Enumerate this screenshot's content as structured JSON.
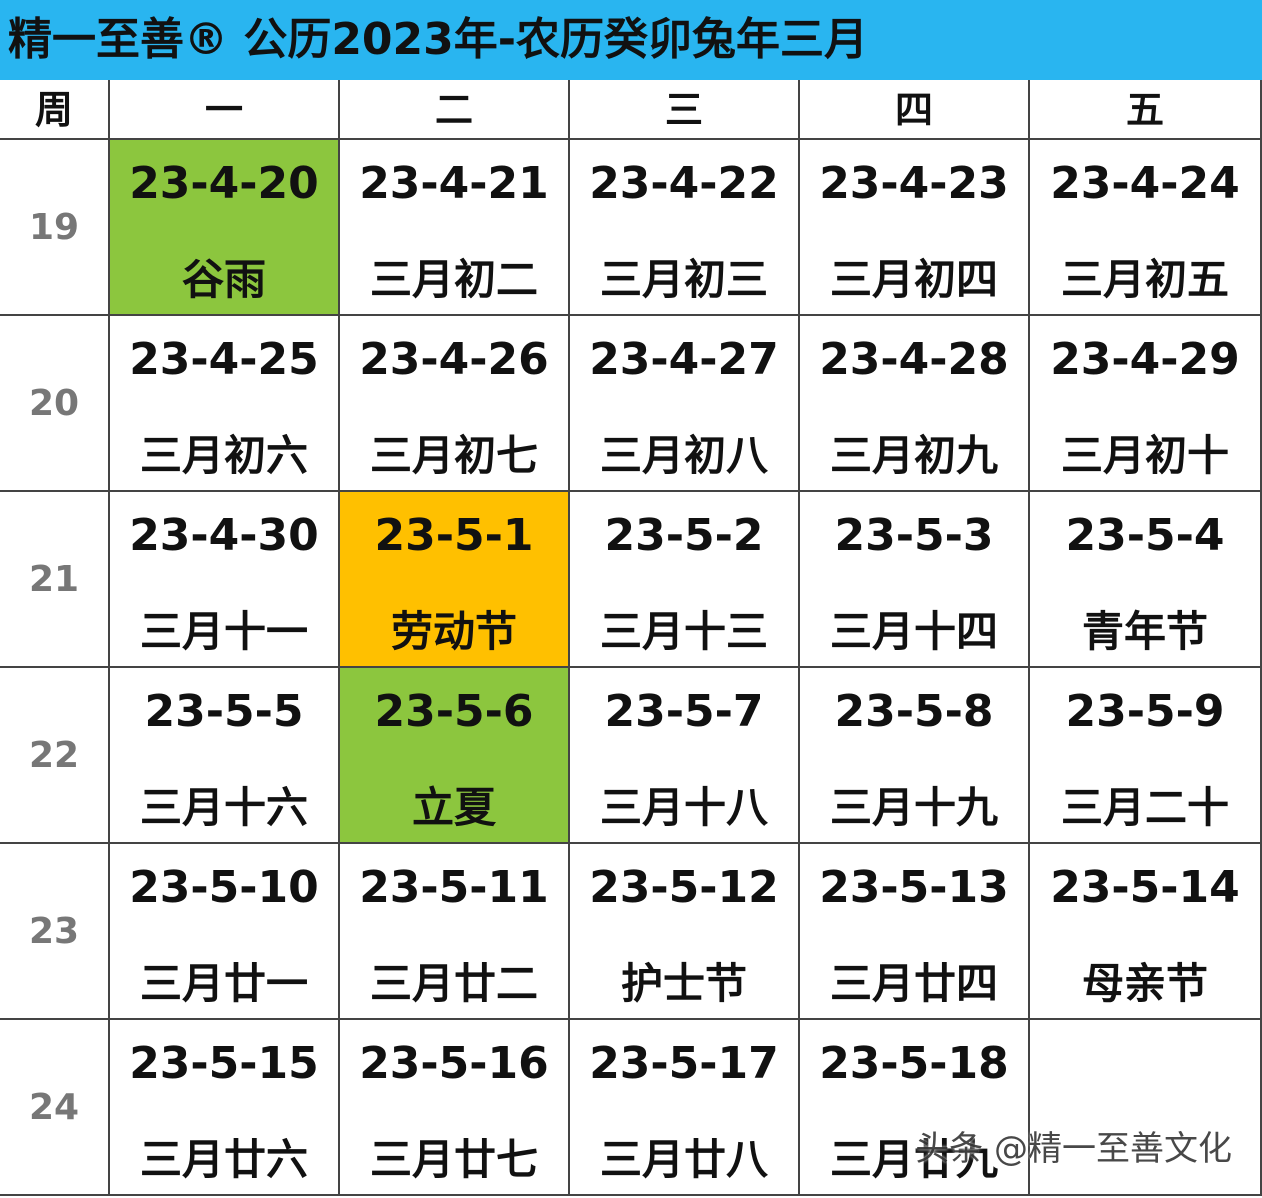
{
  "header": {
    "title": "精一至善® 公历2023年-农历癸卯兔年三月"
  },
  "table": {
    "columns": [
      "周",
      "一",
      "二",
      "三",
      "四",
      "五"
    ],
    "rows": [
      {
        "week": "19",
        "cells": [
          {
            "date": "23-4-20",
            "lunar": "谷雨",
            "fill": "#8cc63e"
          },
          {
            "date": "23-4-21",
            "lunar": "三月初二"
          },
          {
            "date": "23-4-22",
            "lunar": "三月初三"
          },
          {
            "date": "23-4-23",
            "lunar": "三月初四"
          },
          {
            "date": "23-4-24",
            "lunar": "三月初五"
          }
        ]
      },
      {
        "week": "20",
        "cells": [
          {
            "date": "23-4-25",
            "lunar": "三月初六"
          },
          {
            "date": "23-4-26",
            "lunar": "三月初七"
          },
          {
            "date": "23-4-27",
            "lunar": "三月初八"
          },
          {
            "date": "23-4-28",
            "lunar": "三月初九"
          },
          {
            "date": "23-4-29",
            "lunar": "三月初十"
          }
        ]
      },
      {
        "week": "21",
        "cells": [
          {
            "date": "23-4-30",
            "lunar": "三月十一"
          },
          {
            "date": "23-5-1",
            "lunar": "劳动节",
            "fill": "#ffc000"
          },
          {
            "date": "23-5-2",
            "lunar": "三月十三"
          },
          {
            "date": "23-5-3",
            "lunar": "三月十四"
          },
          {
            "date": "23-5-4",
            "lunar": "青年节"
          }
        ]
      },
      {
        "week": "22",
        "cells": [
          {
            "date": "23-5-5",
            "lunar": "三月十六"
          },
          {
            "date": "23-5-6",
            "lunar": "立夏",
            "fill": "#8cc63e"
          },
          {
            "date": "23-5-7",
            "lunar": "三月十八"
          },
          {
            "date": "23-5-8",
            "lunar": "三月十九"
          },
          {
            "date": "23-5-9",
            "lunar": "三月二十"
          }
        ]
      },
      {
        "week": "23",
        "cells": [
          {
            "date": "23-5-10",
            "lunar": "三月廿一"
          },
          {
            "date": "23-5-11",
            "lunar": "三月廿二"
          },
          {
            "date": "23-5-12",
            "lunar": "护士节"
          },
          {
            "date": "23-5-13",
            "lunar": "三月廿四"
          },
          {
            "date": "23-5-14",
            "lunar": "母亲节"
          }
        ]
      },
      {
        "week": "24",
        "cells": [
          {
            "date": "23-5-15",
            "lunar": "三月廿六"
          },
          {
            "date": "23-5-16",
            "lunar": "三月廿七"
          },
          {
            "date": "23-5-17",
            "lunar": "三月廿八"
          },
          {
            "date": "23-5-18",
            "lunar": "三月廿九"
          },
          null
        ]
      }
    ]
  },
  "watermark": "头条 @精一至善文化"
}
